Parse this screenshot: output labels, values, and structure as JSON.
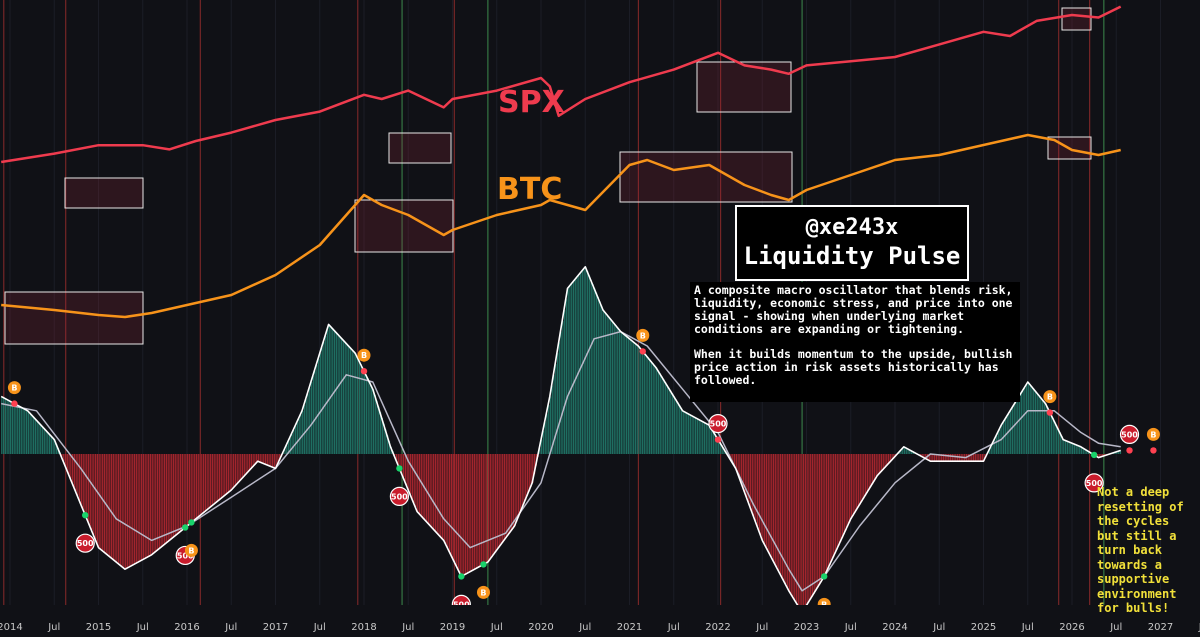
{
  "title_box": {
    "handle": "@xe243x",
    "name": "Liquidity Pulse"
  },
  "description": {
    "p1": "A composite macro oscillator that blends risk, liquidity, economic stress, and price into one signal - showing when underlying market conditions are expanding or tightening.",
    "p2": "When it builds momentum to the upside, bullish price action in risk assets historically has followed."
  },
  "note": "Not a deep resetting of the cycles but still a turn back towards a supportive environment for bulls!",
  "colors": {
    "spx": "#ef3b4e",
    "btc": "#f7931a",
    "osc_pos": "#1f6f62",
    "osc_neg": "#a3252d",
    "signal": "#b8b8c8",
    "note": "#f1e03a",
    "bull": "#19d36b",
    "bear": "#ff4151"
  },
  "chart_data": {
    "type": "line",
    "title": "Liquidity Pulse",
    "x_axis_ticks": [
      "2014",
      "Jul",
      "2015",
      "Jul",
      "2016",
      "Jul",
      "2017",
      "Jul",
      "2018",
      "Jul",
      "2019",
      "Jul",
      "2020",
      "Jul",
      "2021",
      "Jul",
      "2022",
      "Jul",
      "2023",
      "Jul",
      "2024",
      "Jul",
      "2025",
      "Jul",
      "2026",
      "Jul",
      "2027",
      "Jul"
    ],
    "x_range": [
      2014.0,
      2027.6
    ],
    "series": [
      {
        "name": "SPX",
        "label": "SPX",
        "x": [
          2013.9,
          2014.5,
          2015.0,
          2015.5,
          2015.8,
          2016.1,
          2016.5,
          2017.0,
          2017.5,
          2018.0,
          2018.2,
          2018.5,
          2018.9,
          2019.0,
          2019.5,
          2020.0,
          2020.1,
          2020.2,
          2020.5,
          2021.0,
          2021.5,
          2022.0,
          2022.3,
          2022.6,
          2022.8,
          2023.0,
          2023.5,
          2024.0,
          2024.5,
          2025.0,
          2025.3,
          2025.6,
          2026.0,
          2026.3,
          2026.55
        ],
        "values": [
          100,
          110,
          120,
          120,
          115,
          125,
          135,
          150,
          160,
          180,
          175,
          185,
          165,
          175,
          185,
          200,
          190,
          155,
          175,
          195,
          210,
          230,
          215,
          210,
          205,
          215,
          220,
          225,
          240,
          255,
          250,
          268,
          275,
          272,
          285
        ]
      },
      {
        "name": "BTC",
        "label": "BTC",
        "x": [
          2013.9,
          2014.5,
          2015.0,
          2015.3,
          2015.6,
          2016.0,
          2016.5,
          2017.0,
          2017.5,
          2018.0,
          2018.2,
          2018.5,
          2018.9,
          2019.0,
          2019.5,
          2020.0,
          2020.1,
          2020.5,
          2021.0,
          2021.2,
          2021.5,
          2021.9,
          2022.3,
          2022.6,
          2022.8,
          2023.0,
          2023.5,
          2024.0,
          2024.5,
          2025.0,
          2025.5,
          2025.8,
          2026.0,
          2026.3,
          2026.55
        ],
        "values": [
          50,
          45,
          40,
          38,
          42,
          50,
          60,
          80,
          110,
          160,
          150,
          140,
          120,
          125,
          140,
          150,
          155,
          145,
          190,
          195,
          185,
          190,
          170,
          160,
          155,
          165,
          180,
          195,
          200,
          210,
          220,
          215,
          205,
          200,
          205
        ]
      },
      {
        "name": "Liquidity Pulse",
        "x": [
          2013.9,
          2014.2,
          2014.5,
          2014.8,
          2015.0,
          2015.3,
          2015.6,
          2015.9,
          2016.2,
          2016.5,
          2016.8,
          2017.0,
          2017.3,
          2017.6,
          2017.9,
          2018.1,
          2018.3,
          2018.6,
          2018.9,
          2019.1,
          2019.4,
          2019.7,
          2019.9,
          2020.1,
          2020.3,
          2020.5,
          2020.7,
          2020.9,
          2021.1,
          2021.3,
          2021.6,
          2021.9,
          2022.2,
          2022.5,
          2022.8,
          2022.95,
          2023.2,
          2023.5,
          2023.8,
          2024.1,
          2024.4,
          2024.7,
          2025.0,
          2025.2,
          2025.5,
          2025.7,
          2025.9,
          2026.1,
          2026.3,
          2026.55
        ],
        "values": [
          80,
          60,
          20,
          -70,
          -130,
          -160,
          -140,
          -110,
          -80,
          -50,
          -10,
          -20,
          60,
          180,
          140,
          90,
          10,
          -80,
          -120,
          -170,
          -150,
          -100,
          -40,
          80,
          230,
          260,
          200,
          170,
          150,
          120,
          60,
          40,
          -20,
          -120,
          -190,
          -220,
          -170,
          -90,
          -30,
          10,
          -10,
          -10,
          -10,
          40,
          100,
          70,
          20,
          10,
          -5,
          5
        ]
      },
      {
        "name": "Signal",
        "x": [
          2013.9,
          2014.3,
          2014.8,
          2015.2,
          2015.6,
          2016.0,
          2016.5,
          2017.0,
          2017.4,
          2017.8,
          2018.1,
          2018.5,
          2018.9,
          2019.2,
          2019.6,
          2020.0,
          2020.3,
          2020.6,
          2020.9,
          2021.2,
          2021.6,
          2022.0,
          2022.4,
          2022.8,
          2022.95,
          2023.2,
          2023.6,
          2024.0,
          2024.4,
          2024.8,
          2025.2,
          2025.5,
          2025.8,
          2026.1,
          2026.3,
          2026.55
        ],
        "values": [
          70,
          60,
          -20,
          -90,
          -120,
          -100,
          -60,
          -20,
          40,
          110,
          100,
          -10,
          -90,
          -130,
          -110,
          -40,
          80,
          160,
          170,
          150,
          90,
          30,
          -70,
          -160,
          -190,
          -170,
          -100,
          -40,
          0,
          -5,
          20,
          60,
          60,
          30,
          15,
          10
        ]
      }
    ],
    "signals": [
      {
        "x": 2014.05,
        "kind": "btc-buy",
        "label": "B"
      },
      {
        "x": 2014.85,
        "kind": "sell",
        "label": "500"
      },
      {
        "x": 2015.98,
        "kind": "sell",
        "label": "500"
      },
      {
        "x": 2016.05,
        "kind": "btc-buy",
        "label": "B"
      },
      {
        "x": 2018.0,
        "kind": "btc-buy",
        "label": "B"
      },
      {
        "x": 2018.4,
        "kind": "sell",
        "label": "500"
      },
      {
        "x": 2019.1,
        "kind": "sell",
        "label": "500"
      },
      {
        "x": 2019.35,
        "kind": "btc-buy",
        "label": "B"
      },
      {
        "x": 2021.15,
        "kind": "btc-buy",
        "label": "B"
      },
      {
        "x": 2022.0,
        "kind": "sell",
        "label": "500"
      },
      {
        "x": 2022.95,
        "kind": "sell",
        "label": "500"
      },
      {
        "x": 2023.2,
        "kind": "btc-buy",
        "label": "B"
      },
      {
        "x": 2025.75,
        "kind": "btc-buy",
        "label": "B"
      },
      {
        "x": 2026.25,
        "kind": "sell",
        "label": "500"
      },
      {
        "x": 2026.65,
        "kind": "sell",
        "label": "500"
      },
      {
        "x": 2026.92,
        "kind": "btc-buy",
        "label": "B"
      }
    ]
  }
}
